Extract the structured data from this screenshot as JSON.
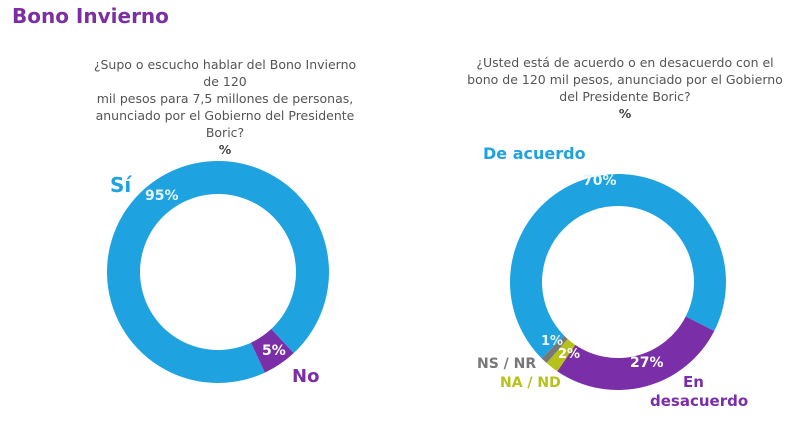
{
  "page_title": "Bono Invierno",
  "chart_data": [
    {
      "type": "pie",
      "title": "¿Supo o escucho hablar del Bono Invierno de 120 mil pesos para 7,5 millones de personas, anunciado por el Gobierno del Presidente Boric?",
      "unit_label": "%",
      "slices": [
        {
          "name": "Sí",
          "value": 95,
          "label": "95%",
          "color": "#1fa3e0"
        },
        {
          "name": "No",
          "value": 5,
          "label": "5%",
          "color": "#7a2ea8"
        }
      ]
    },
    {
      "type": "pie",
      "title": "¿Usted está de acuerdo o en desacuerdo con el bono de 120 mil pesos, anunciado por el Gobierno del Presidente Boric?",
      "unit_label": "%",
      "slices": [
        {
          "name": "De acuerdo",
          "value": 70,
          "label": "70%",
          "color": "#1fa3e0"
        },
        {
          "name": "En desacuerdo",
          "value": 27,
          "label": "27%",
          "color": "#7a2ea8"
        },
        {
          "name": "NA / ND",
          "value": 2,
          "label": "2%",
          "color": "#b5c21a"
        },
        {
          "name": "NS / NR",
          "value": 1,
          "label": "1%",
          "color": "#777777"
        }
      ]
    }
  ],
  "q1_lines": [
    "¿Supo o escucho hablar del Bono Invierno de 120",
    "mil pesos para 7,5 millones de personas,",
    "anunciado por el Gobierno del Presidente Boric?"
  ],
  "q2_lines": [
    "¿Usted está de acuerdo o en desacuerdo con el",
    "bono de 120 mil pesos, anunciado por el Gobierno",
    "del Presidente Boric?"
  ],
  "desacuerdo_lines": [
    "En",
    "desacuerdo"
  ]
}
